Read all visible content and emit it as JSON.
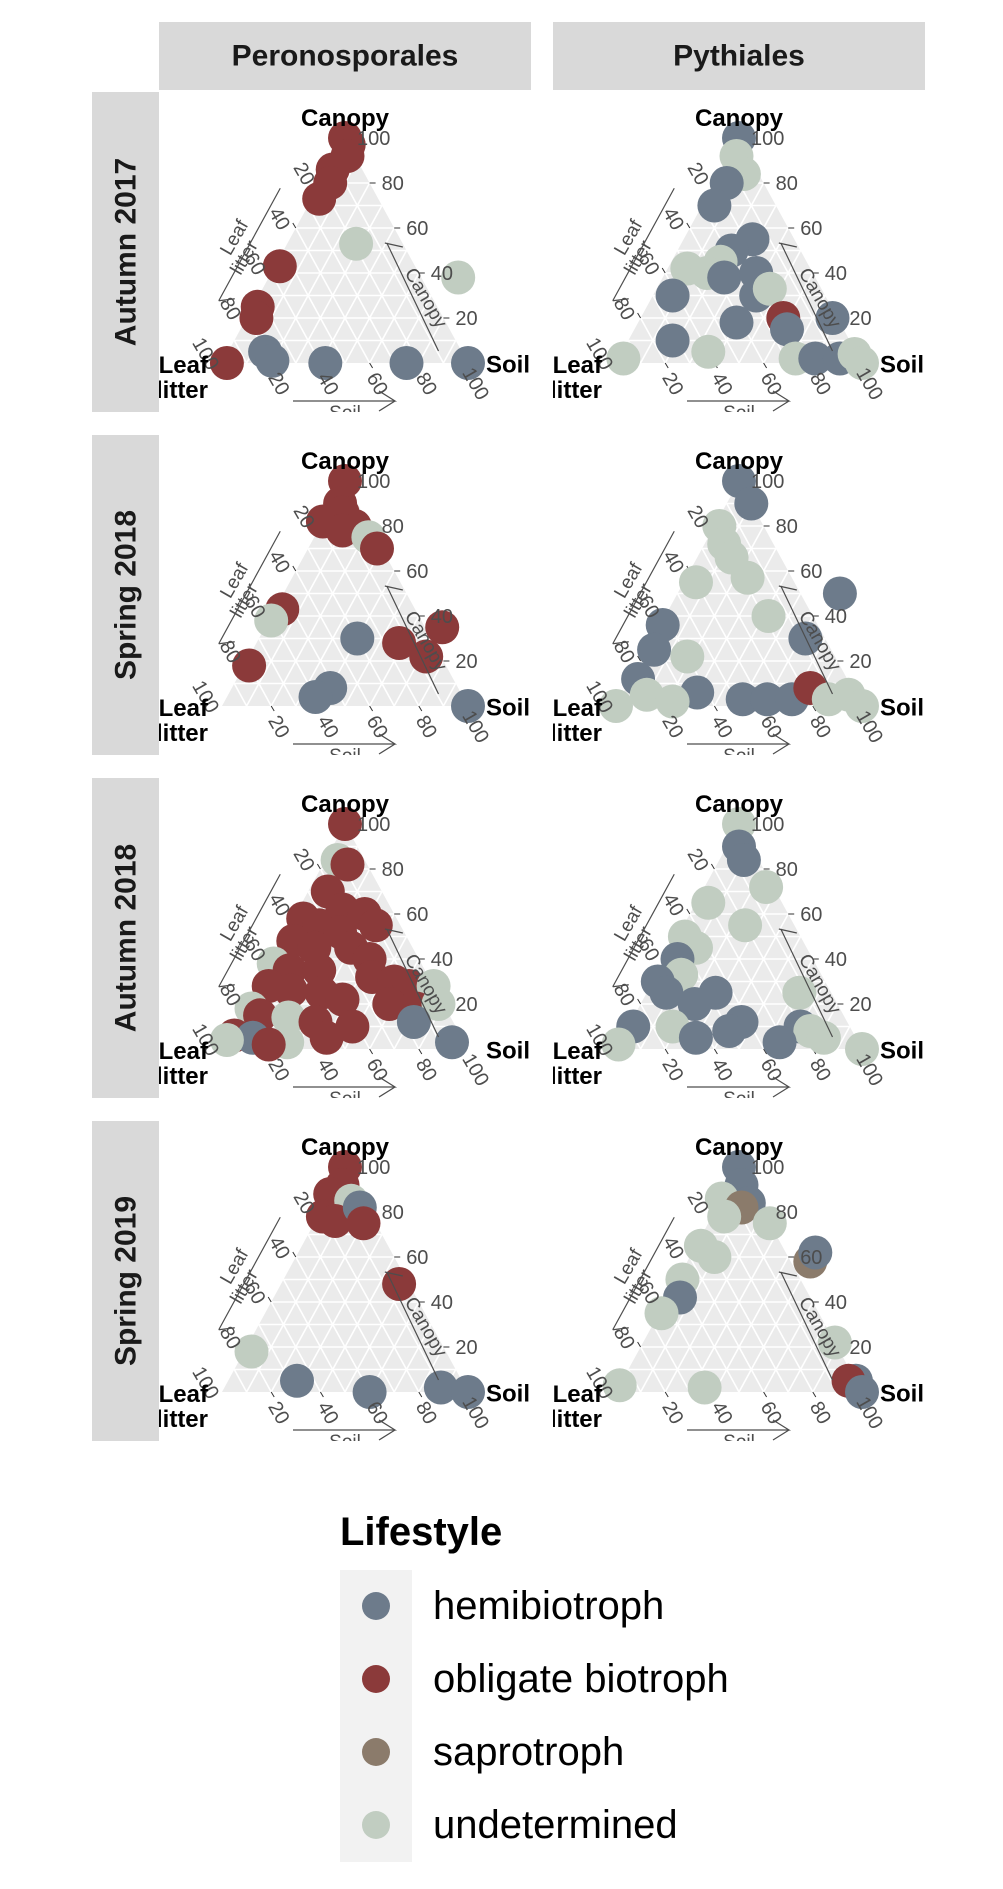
{
  "chart_data": {
    "type": "scatter",
    "subtype": "ternary",
    "columns": [
      "Peronosporales",
      "Pythiales"
    ],
    "rows": [
      "Autumn 2017",
      "Spring 2018",
      "Autumn 2018",
      "Spring 2019"
    ],
    "axes": {
      "top": "Canopy",
      "left": "Leaf litter",
      "right": "Soil",
      "top_label_lines": [
        "Canopy"
      ],
      "left_label_lines": [
        "Leaf",
        "litter"
      ],
      "right_label_lines": [
        "Soil"
      ],
      "arrow_left_lines": [
        "Leaf",
        "litter"
      ],
      "arrow_right": "Canopy",
      "arrow_bottom": "Soil",
      "ticks": [
        "20",
        "40",
        "60",
        "80",
        "100"
      ],
      "range": [
        0,
        100
      ]
    },
    "legend": {
      "title": "Lifestyle",
      "placement": "bottom",
      "items": [
        {
          "label": "hemibiotroph",
          "color": "#6d7b8b"
        },
        {
          "label": "obligate biotroph",
          "color": "#8b3a3a"
        },
        {
          "label": "saprotroph",
          "color": "#8b7b6b"
        },
        {
          "label": "undetermined",
          "color": "#c1cdc1"
        }
      ]
    },
    "colors": {
      "hemibiotroph": "#6d7b8b",
      "obligate biotroph": "#8b3a3a",
      "saprotroph": "#8b7b6b",
      "undetermined": "#c1cdc1"
    },
    "panel_background": "#ebebeb",
    "strip_background": "#d9d9d9",
    "grid": true,
    "point_format": "[soil %, canopy %, lifestyle]",
    "panels": [
      {
        "row": 0,
        "col": 0,
        "points": [
          [
            0,
            100,
            "obligate biotroph"
          ],
          [
            3,
            97,
            "obligate biotroph"
          ],
          [
            5,
            92,
            "obligate biotroph"
          ],
          [
            2,
            86,
            "obligate biotroph"
          ],
          [
            4,
            80,
            "obligate biotroph"
          ],
          [
            3,
            73,
            "obligate biotroph"
          ],
          [
            28,
            53,
            "undetermined"
          ],
          [
            2,
            43,
            "obligate biotroph"
          ],
          [
            2,
            25,
            "obligate biotroph"
          ],
          [
            4,
            20,
            "obligate biotroph"
          ],
          [
            2,
            0,
            "obligate biotroph"
          ],
          [
            15,
            5,
            "hemibiotroph"
          ],
          [
            20,
            1,
            "hemibiotroph"
          ],
          [
            42,
            0,
            "hemibiotroph"
          ],
          [
            75,
            0,
            "hemibiotroph"
          ],
          [
            100,
            0,
            "hemibiotroph"
          ],
          [
            77,
            38,
            "undetermined"
          ]
        ]
      },
      {
        "row": 0,
        "col": 1,
        "points": [
          [
            0,
            100,
            "hemibiotroph"
          ],
          [
            3,
            92,
            "undetermined"
          ],
          [
            10,
            84,
            "undetermined"
          ],
          [
            5,
            80,
            "hemibiotroph"
          ],
          [
            5,
            70,
            "hemibiotroph"
          ],
          [
            28,
            55,
            "hemibiotroph"
          ],
          [
            22,
            50,
            "hemibiotroph"
          ],
          [
            20,
            45,
            "undetermined"
          ],
          [
            8,
            42,
            "undetermined"
          ],
          [
            8,
            30,
            "hemibiotroph"
          ],
          [
            17,
            40,
            "undetermined"
          ],
          [
            25,
            38,
            "hemibiotroph"
          ],
          [
            37,
            40,
            "hemibiotroph"
          ],
          [
            42,
            30,
            "hemibiotroph"
          ],
          [
            46,
            33,
            "undetermined"
          ],
          [
            40,
            18,
            "hemibiotroph"
          ],
          [
            58,
            20,
            "obligate biotroph"
          ],
          [
            62,
            15,
            "hemibiotroph"
          ],
          [
            78,
            20,
            "hemibiotroph"
          ],
          [
            18,
            10,
            "hemibiotroph"
          ],
          [
            35,
            5,
            "undetermined"
          ],
          [
            2,
            2,
            "undetermined"
          ],
          [
            72,
            2,
            "undetermined"
          ],
          [
            80,
            2,
            "hemibiotroph"
          ],
          [
            90,
            2,
            "hemibiotroph"
          ],
          [
            95,
            4,
            "undetermined"
          ],
          [
            100,
            0,
            "undetermined"
          ]
        ]
      },
      {
        "row": 1,
        "col": 0,
        "points": [
          [
            0,
            100,
            "obligate biotroph"
          ],
          [
            3,
            90,
            "obligate biotroph"
          ],
          [
            6,
            86,
            "obligate biotroph"
          ],
          [
            0,
            82,
            "obligate biotroph"
          ],
          [
            14,
            80,
            "obligate biotroph"
          ],
          [
            10,
            78,
            "obligate biotroph"
          ],
          [
            22,
            75,
            "undetermined"
          ],
          [
            28,
            70,
            "obligate biotroph"
          ],
          [
            3,
            43,
            "obligate biotroph"
          ],
          [
            1,
            38,
            "undetermined"
          ],
          [
            2,
            18,
            "obligate biotroph"
          ],
          [
            40,
            30,
            "hemibiotroph"
          ],
          [
            58,
            28,
            "obligate biotroph"
          ],
          [
            72,
            35,
            "obligate biotroph"
          ],
          [
            72,
            22,
            "obligate biotroph"
          ],
          [
            40,
            8,
            "hemibiotroph"
          ],
          [
            36,
            4,
            "hemibiotroph"
          ],
          [
            100,
            0,
            "hemibiotroph"
          ]
        ]
      },
      {
        "row": 1,
        "col": 1,
        "points": [
          [
            0,
            100,
            "hemibiotroph"
          ],
          [
            10,
            90,
            "hemibiotroph"
          ],
          [
            2,
            80,
            "undetermined"
          ],
          [
            8,
            72,
            "undetermined"
          ],
          [
            14,
            66,
            "undetermined"
          ],
          [
            25,
            57,
            "undetermined"
          ],
          [
            5,
            55,
            "undetermined"
          ],
          [
            66,
            50,
            "hemibiotroph"
          ],
          [
            42,
            40,
            "undetermined"
          ],
          [
            62,
            30,
            "hemibiotroph"
          ],
          [
            1,
            36,
            "hemibiotroph"
          ],
          [
            3,
            25,
            "hemibiotroph"
          ],
          [
            18,
            22,
            "undetermined"
          ],
          [
            3,
            12,
            "hemibiotroph"
          ],
          [
            10,
            5,
            "undetermined"
          ],
          [
            30,
            6,
            "hemibiotroph"
          ],
          [
            22,
            2,
            "undetermined"
          ],
          [
            50,
            3,
            "hemibiotroph"
          ],
          [
            60,
            3,
            "hemibiotroph"
          ],
          [
            70,
            3,
            "hemibiotroph"
          ],
          [
            75,
            8,
            "obligate biotroph"
          ],
          [
            85,
            3,
            "undetermined"
          ],
          [
            92,
            5,
            "undetermined"
          ],
          [
            100,
            0,
            "undetermined"
          ],
          [
            0,
            0,
            "undetermined"
          ]
        ]
      },
      {
        "row": 2,
        "col": 0,
        "points": [
          [
            0,
            100,
            "obligate biotroph"
          ],
          [
            5,
            84,
            "undetermined"
          ],
          [
            10,
            82,
            "obligate biotroph"
          ],
          [
            8,
            70,
            "obligate biotroph"
          ],
          [
            18,
            62,
            "obligate biotroph"
          ],
          [
            28,
            60,
            "obligate biotroph"
          ],
          [
            4,
            58,
            "obligate biotroph"
          ],
          [
            12,
            55,
            "obligate biotroph"
          ],
          [
            22,
            52,
            "obligate biotroph"
          ],
          [
            35,
            55,
            "obligate biotroph"
          ],
          [
            5,
            48,
            "obligate biotroph"
          ],
          [
            15,
            45,
            "obligate biotroph"
          ],
          [
            30,
            45,
            "obligate biotroph"
          ],
          [
            40,
            40,
            "obligate biotroph"
          ],
          [
            2,
            38,
            "undetermined"
          ],
          [
            10,
            35,
            "obligate biotroph"
          ],
          [
            22,
            35,
            "obligate biotroph"
          ],
          [
            45,
            32,
            "obligate biotroph"
          ],
          [
            55,
            30,
            "obligate biotroph"
          ],
          [
            62,
            28,
            "obligate biotroph"
          ],
          [
            72,
            28,
            "undetermined"
          ],
          [
            5,
            28,
            "obligate biotroph"
          ],
          [
            15,
            26,
            "obligate biotroph"
          ],
          [
            28,
            25,
            "obligate biotroph"
          ],
          [
            38,
            22,
            "obligate biotroph"
          ],
          [
            58,
            20,
            "obligate biotroph"
          ],
          [
            70,
            18,
            "obligate biotroph"
          ],
          [
            78,
            20,
            "undetermined"
          ],
          [
            3,
            18,
            "undetermined"
          ],
          [
            8,
            15,
            "obligate biotroph"
          ],
          [
            20,
            14,
            "undetermined"
          ],
          [
            32,
            12,
            "obligate biotroph"
          ],
          [
            48,
            10,
            "obligate biotroph"
          ],
          [
            72,
            12,
            "hemibiotroph"
          ],
          [
            2,
            6,
            "obligate biotroph"
          ],
          [
            10,
            5,
            "hemibiotroph"
          ],
          [
            25,
            3,
            "undetermined"
          ],
          [
            40,
            5,
            "obligate biotroph"
          ],
          [
            92,
            3,
            "hemibiotroph"
          ],
          [
            0,
            4,
            "undetermined"
          ],
          [
            18,
            2,
            "obligate biotroph"
          ]
        ]
      },
      {
        "row": 2,
        "col": 1,
        "points": [
          [
            0,
            100,
            "undetermined"
          ],
          [
            5,
            90,
            "hemibiotroph"
          ],
          [
            10,
            84,
            "hemibiotroph"
          ],
          [
            25,
            72,
            "undetermined"
          ],
          [
            5,
            65,
            "undetermined"
          ],
          [
            25,
            55,
            "undetermined"
          ],
          [
            3,
            50,
            "undetermined"
          ],
          [
            10,
            45,
            "undetermined"
          ],
          [
            5,
            40,
            "hemibiotroph"
          ],
          [
            10,
            33,
            "undetermined"
          ],
          [
            2,
            30,
            "hemibiotroph"
          ],
          [
            8,
            25,
            "hemibiotroph"
          ],
          [
            28,
            25,
            "hemibiotroph"
          ],
          [
            62,
            25,
            "undetermined"
          ],
          [
            22,
            20,
            "hemibiotroph"
          ],
          [
            45,
            12,
            "hemibiotroph"
          ],
          [
            42,
            8,
            "hemibiotroph"
          ],
          [
            70,
            10,
            "hemibiotroph"
          ],
          [
            75,
            8,
            "undetermined"
          ],
          [
            2,
            10,
            "hemibiotroph"
          ],
          [
            18,
            10,
            "undetermined"
          ],
          [
            30,
            5,
            "hemibiotroph"
          ],
          [
            65,
            3,
            "hemibiotroph"
          ],
          [
            82,
            5,
            "undetermined"
          ],
          [
            0,
            2,
            "undetermined"
          ],
          [
            100,
            0,
            "undetermined"
          ]
        ]
      },
      {
        "row": 3,
        "col": 0,
        "points": [
          [
            0,
            100,
            "obligate biotroph"
          ],
          [
            3,
            92,
            "obligate biotroph"
          ],
          [
            0,
            88,
            "obligate biotroph"
          ],
          [
            10,
            85,
            "undetermined"
          ],
          [
            2,
            78,
            "obligate biotroph"
          ],
          [
            8,
            76,
            "obligate biotroph"
          ],
          [
            15,
            82,
            "hemibiotroph"
          ],
          [
            20,
            75,
            "obligate biotroph"
          ],
          [
            48,
            48,
            "obligate biotroph"
          ],
          [
            3,
            18,
            "undetermined"
          ],
          [
            28,
            5,
            "hemibiotroph"
          ],
          [
            60,
            0,
            "hemibiotroph"
          ],
          [
            88,
            2,
            "hemibiotroph"
          ],
          [
            100,
            0,
            "hemibiotroph"
          ]
        ]
      },
      {
        "row": 3,
        "col": 1,
        "points": [
          [
            0,
            100,
            "hemibiotroph"
          ],
          [
            5,
            92,
            "hemibiotroph"
          ],
          [
            0,
            86,
            "undetermined"
          ],
          [
            12,
            84,
            "hemibiotroph"
          ],
          [
            10,
            82,
            "saprotroph"
          ],
          [
            5,
            78,
            "undetermined"
          ],
          [
            25,
            75,
            "undetermined"
          ],
          [
            2,
            65,
            "undetermined"
          ],
          [
            10,
            60,
            "undetermined"
          ],
          [
            50,
            58,
            "saprotroph"
          ],
          [
            50,
            62,
            "hemibiotroph"
          ],
          [
            2,
            50,
            "undetermined"
          ],
          [
            5,
            42,
            "hemibiotroph"
          ],
          [
            1,
            35,
            "undetermined"
          ],
          [
            78,
            22,
            "undetermined"
          ],
          [
            0,
            3,
            "undetermined"
          ],
          [
            35,
            2,
            "undetermined"
          ],
          [
            95,
            5,
            "hemibiotroph"
          ],
          [
            92,
            5,
            "obligate biotroph"
          ],
          [
            100,
            0,
            "hemibiotroph"
          ]
        ]
      }
    ]
  }
}
